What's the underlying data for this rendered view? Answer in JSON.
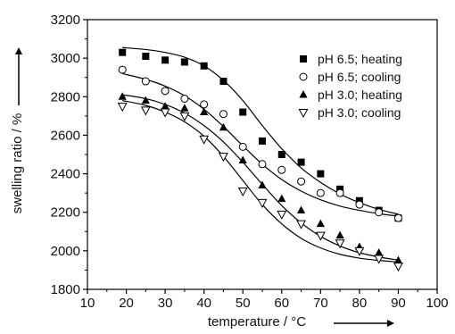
{
  "chart_data": {
    "type": "scatter",
    "xlabel": "temperature / °C",
    "ylabel": "swelling ratio / %",
    "xlim": [
      10,
      100
    ],
    "ylim": [
      1800,
      3200
    ],
    "x_ticks": [
      10,
      20,
      30,
      40,
      50,
      60,
      70,
      80,
      90,
      100
    ],
    "y_ticks": [
      1800,
      2000,
      2200,
      2400,
      2600,
      2800,
      3000,
      3200
    ],
    "grid": false,
    "legend_position": "top-right",
    "series": [
      {
        "name": "pH 6.5; heating",
        "marker": "filled-square",
        "x": [
          19,
          25,
          30,
          35,
          40,
          45,
          50,
          55,
          60,
          65,
          70,
          75,
          80,
          85,
          90
        ],
        "y": [
          3030,
          3010,
          2990,
          2980,
          2960,
          2880,
          2720,
          2570,
          2500,
          2460,
          2400,
          2320,
          2260,
          2210,
          2170
        ],
        "fit": [
          [
            19,
            3055
          ],
          [
            25,
            3045
          ],
          [
            30,
            3030
          ],
          [
            35,
            3005
          ],
          [
            40,
            2960
          ],
          [
            45,
            2885
          ],
          [
            50,
            2780
          ],
          [
            55,
            2650
          ],
          [
            60,
            2530
          ],
          [
            65,
            2430
          ],
          [
            70,
            2355
          ],
          [
            75,
            2295
          ],
          [
            80,
            2250
          ],
          [
            85,
            2215
          ],
          [
            90,
            2190
          ]
        ]
      },
      {
        "name": "pH 6.5; cooling",
        "marker": "open-circle",
        "x": [
          19,
          25,
          30,
          35,
          40,
          45,
          50,
          55,
          60,
          65,
          70,
          75,
          80,
          85,
          90
        ],
        "y": [
          2940,
          2880,
          2830,
          2790,
          2760,
          2710,
          2540,
          2450,
          2420,
          2360,
          2300,
          2300,
          2240,
          2200,
          2170
        ],
        "fit": [
          [
            19,
            2920
          ],
          [
            25,
            2890
          ],
          [
            30,
            2855
          ],
          [
            35,
            2805
          ],
          [
            40,
            2735
          ],
          [
            45,
            2645
          ],
          [
            50,
            2545
          ],
          [
            55,
            2450
          ],
          [
            60,
            2370
          ],
          [
            65,
            2310
          ],
          [
            70,
            2265
          ],
          [
            75,
            2232
          ],
          [
            80,
            2210
          ],
          [
            85,
            2193
          ],
          [
            90,
            2180
          ]
        ]
      },
      {
        "name": "pH 3.0; heating",
        "marker": "filled-triangle",
        "x": [
          19,
          25,
          30,
          35,
          40,
          45,
          50,
          55,
          60,
          65,
          70,
          75,
          80,
          85,
          90
        ],
        "y": [
          2800,
          2780,
          2750,
          2740,
          2720,
          2640,
          2470,
          2340,
          2270,
          2210,
          2140,
          2080,
          2020,
          1990,
          1950
        ],
        "fit": [
          [
            19,
            2810
          ],
          [
            25,
            2790
          ],
          [
            30,
            2760
          ],
          [
            35,
            2715
          ],
          [
            40,
            2650
          ],
          [
            45,
            2565
          ],
          [
            50,
            2460
          ],
          [
            55,
            2345
          ],
          [
            60,
            2235
          ],
          [
            65,
            2145
          ],
          [
            70,
            2075
          ],
          [
            75,
            2025
          ],
          [
            80,
            1990
          ],
          [
            85,
            1968
          ],
          [
            90,
            1952
          ]
        ]
      },
      {
        "name": "pH 3.0; cooling",
        "marker": "open-triangle-down",
        "x": [
          19,
          25,
          30,
          35,
          40,
          45,
          50,
          55,
          60,
          65,
          70,
          75,
          80,
          85,
          90
        ],
        "y": [
          2750,
          2730,
          2720,
          2700,
          2580,
          2490,
          2310,
          2250,
          2190,
          2140,
          2080,
          2040,
          2000,
          1960,
          1920
        ],
        "fit": [
          [
            19,
            2780
          ],
          [
            25,
            2755
          ],
          [
            30,
            2720
          ],
          [
            35,
            2670
          ],
          [
            40,
            2595
          ],
          [
            45,
            2490
          ],
          [
            50,
            2365
          ],
          [
            55,
            2240
          ],
          [
            60,
            2140
          ],
          [
            65,
            2065
          ],
          [
            70,
            2015
          ],
          [
            75,
            1982
          ],
          [
            80,
            1962
          ],
          [
            85,
            1950
          ],
          [
            90,
            1942
          ]
        ]
      }
    ]
  }
}
